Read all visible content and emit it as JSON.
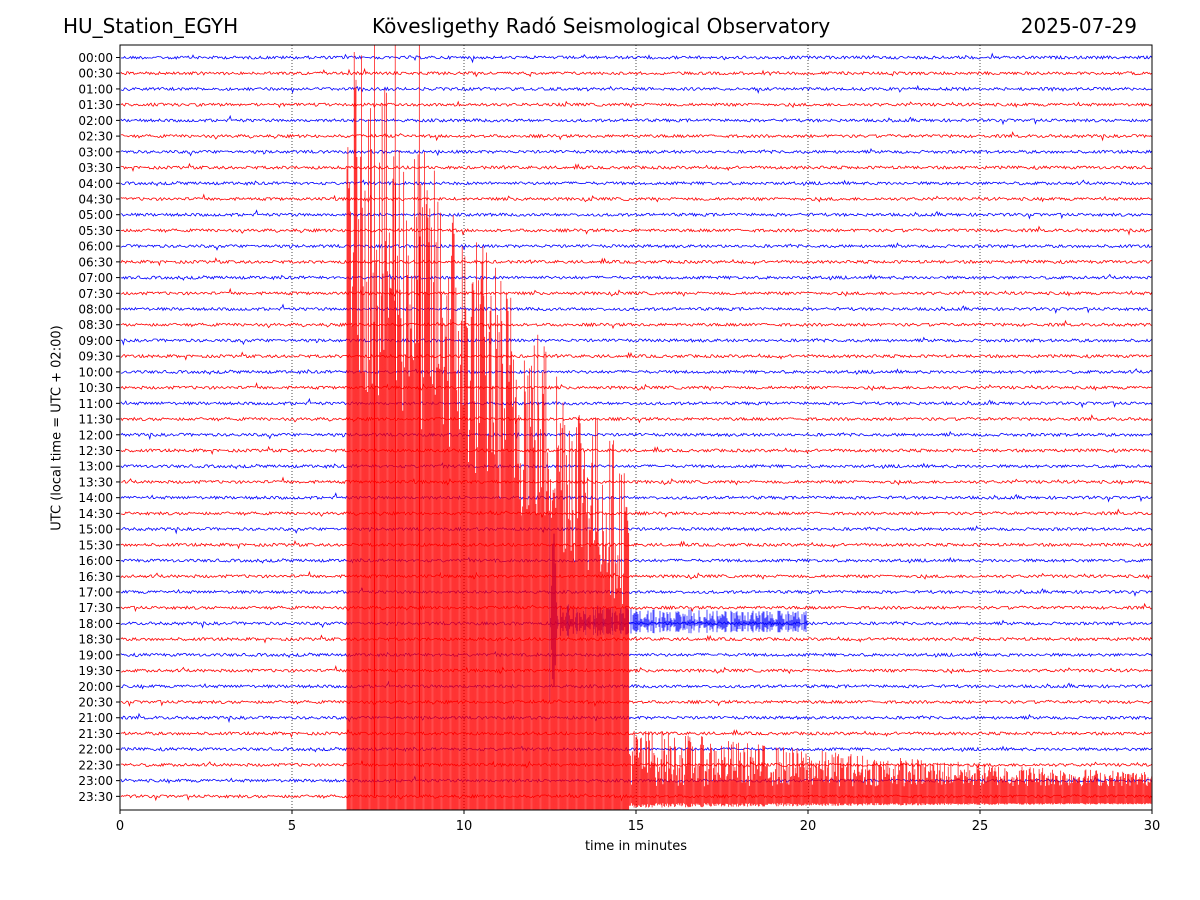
{
  "header": {
    "station": "HU_Station_EGYH",
    "observatory": "Kövesligethy Radó Seismological Observatory",
    "date": "2025-07-29"
  },
  "chart_data": {
    "type": "line",
    "title": "Kövesligethy Radó Seismological Observatory",
    "xlabel": "time in minutes",
    "ylabel": "UTC (local time = UTC + 02:00)",
    "xlim": [
      0,
      30
    ],
    "xticks": [
      0,
      5,
      10,
      15,
      20,
      25,
      30
    ],
    "grid": "vertical dotted lines at x ticks",
    "row_labels": [
      "00:00",
      "00:30",
      "01:00",
      "01:30",
      "02:00",
      "02:30",
      "03:00",
      "03:30",
      "04:00",
      "04:30",
      "05:00",
      "05:30",
      "06:00",
      "06:30",
      "07:00",
      "07:30",
      "08:00",
      "08:30",
      "09:00",
      "09:30",
      "10:00",
      "10:30",
      "11:00",
      "11:30",
      "12:00",
      "12:30",
      "13:00",
      "13:30",
      "14:00",
      "14:30",
      "15:00",
      "15:30",
      "16:00",
      "16:30",
      "17:00",
      "17:30",
      "18:00",
      "18:30",
      "19:00",
      "19:30",
      "20:00",
      "20:30",
      "21:00",
      "21:30",
      "22:00",
      "22:30",
      "23:00",
      "23:30"
    ],
    "colors": {
      "even_rows": "#0000ff",
      "odd_rows": "#ff0000",
      "grid": "#000000"
    },
    "events": [
      {
        "row": "18:00",
        "start_min": 12.5,
        "end_min": 20,
        "peak_rel_amplitude": 0.75
      },
      {
        "row": "23:30",
        "start_min": 6.6,
        "end_min": 30,
        "peak_rel_amplitude": 1.0,
        "note": "large earthquake, clipped, spans many rows"
      }
    ]
  }
}
